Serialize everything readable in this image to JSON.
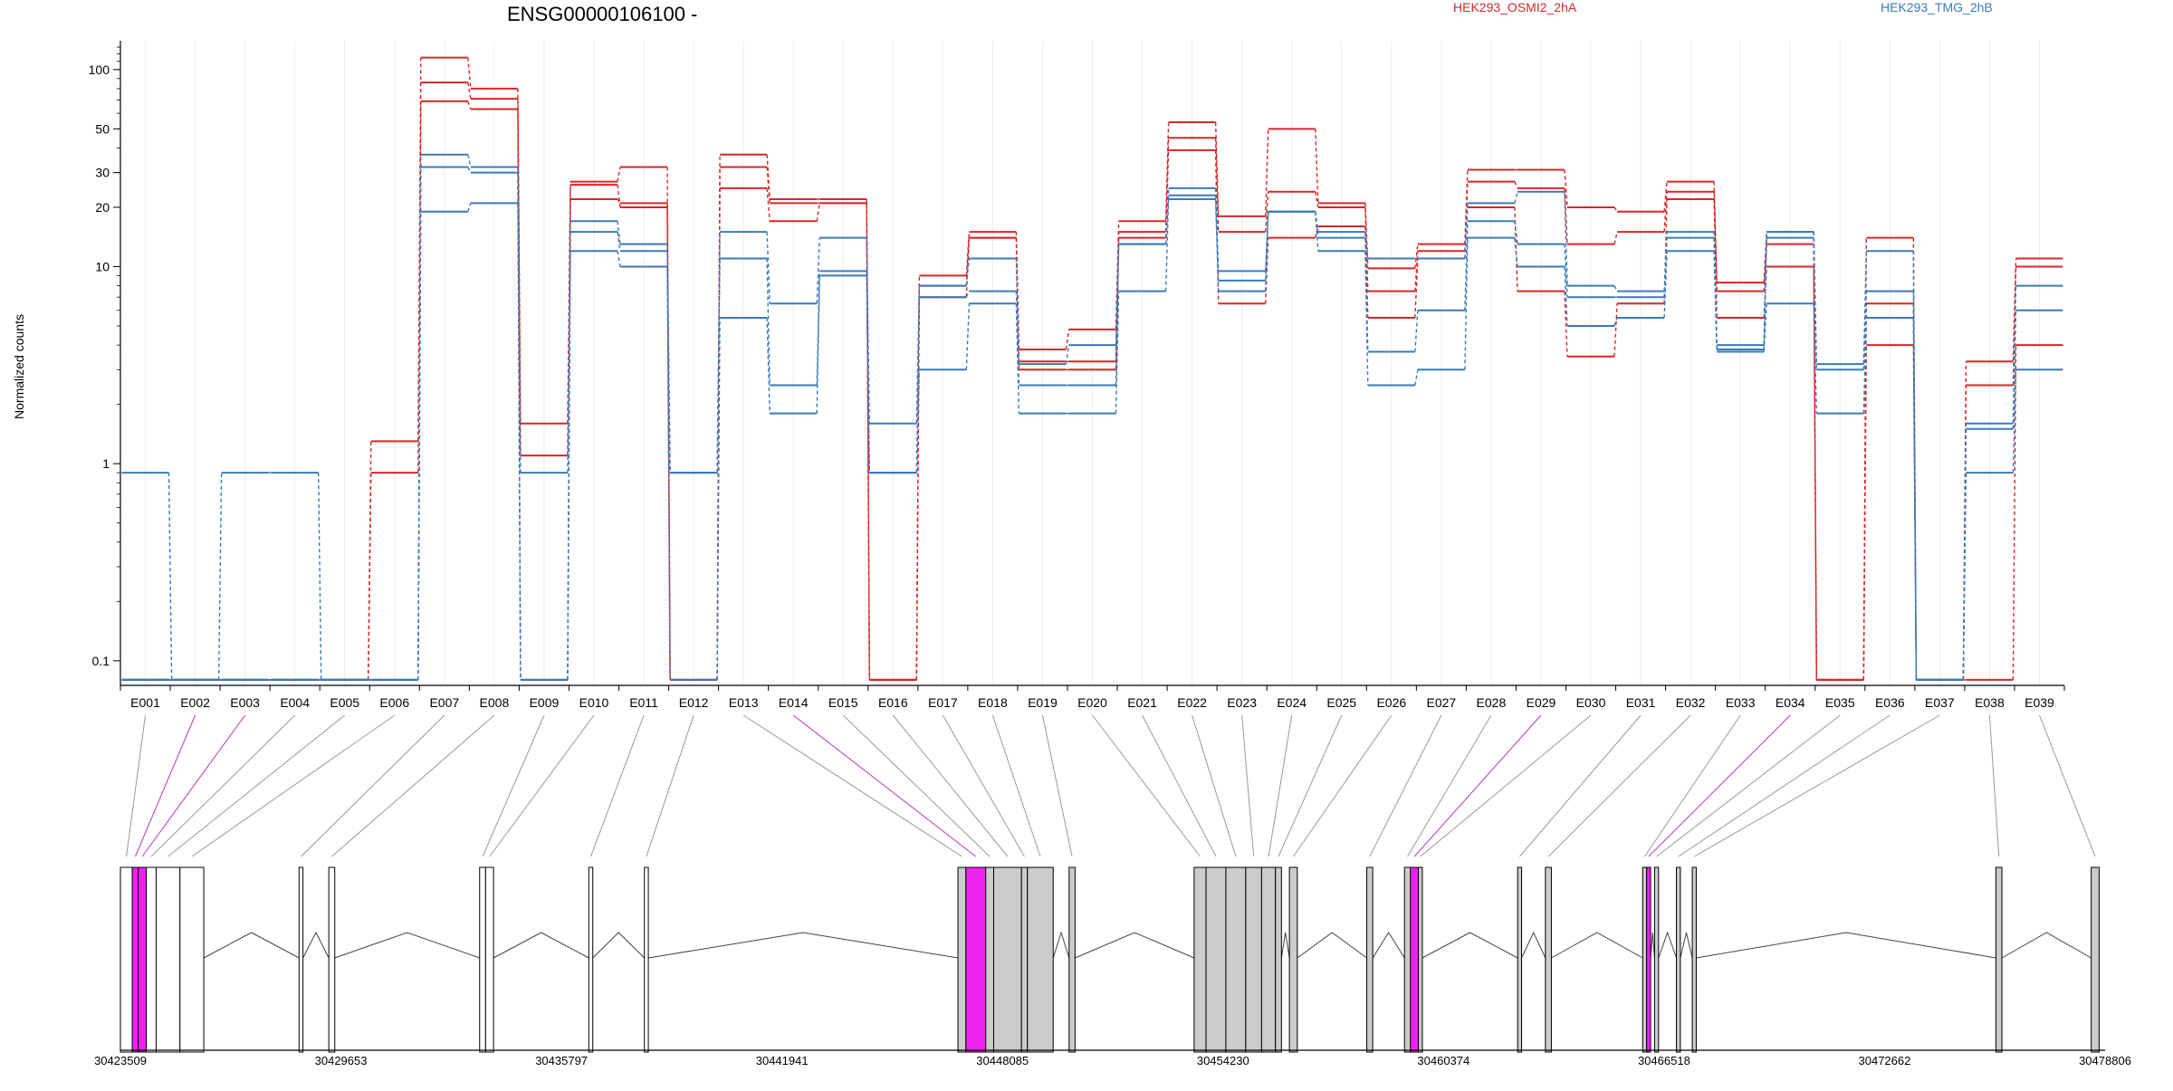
{
  "chart_data": {
    "type": "line",
    "title": "ENSG00000106100 -",
    "ylabel": "Normalized counts",
    "y_scale": "log",
    "y_ticks": [
      0.1,
      1,
      10,
      20,
      30,
      50,
      100
    ],
    "ylim": [
      0.075,
      140
    ],
    "grid": true,
    "categories": [
      "E001",
      "E002",
      "E003",
      "E004",
      "E005",
      "E006",
      "E007",
      "E008",
      "E009",
      "E010",
      "E011",
      "E012",
      "E013",
      "E014",
      "E015",
      "E016",
      "E017",
      "E018",
      "E019",
      "E020",
      "E021",
      "E022",
      "E023",
      "E024",
      "E025",
      "E026",
      "E027",
      "E028",
      "E029",
      "E030",
      "E031",
      "E032",
      "E033",
      "E034",
      "E035",
      "E036",
      "E037",
      "E038",
      "E039"
    ],
    "legend": [
      {
        "name": "HEK293_OSMI2_2hA",
        "color": "#d62728"
      },
      {
        "name": "HEK293_TMG_2hB",
        "color": "#3a7ab8"
      }
    ],
    "series": [
      {
        "group": "HEK293_OSMI2_2hA",
        "color": "#d62728",
        "values": [
          0.08,
          0.08,
          0.08,
          0.08,
          0.08,
          1.3,
          115,
          80,
          1.6,
          27,
          32,
          0.08,
          37,
          22,
          22,
          0.08,
          9,
          15,
          3.8,
          4.8,
          17,
          54,
          18,
          50,
          21,
          9.8,
          13,
          31,
          31,
          20,
          19,
          27,
          8.3,
          15,
          0.08,
          14,
          0.08,
          3.3,
          11
        ]
      },
      {
        "group": "HEK293_OSMI2_2hA",
        "color": "#d62728",
        "values": [
          0.08,
          0.08,
          0.08,
          0.08,
          0.08,
          0.9,
          86,
          71,
          1.1,
          22,
          21,
          0.08,
          32,
          21,
          21,
          0.08,
          8,
          14,
          3.3,
          3.3,
          15,
          45,
          15,
          24,
          20,
          7.5,
          12,
          27,
          25,
          13,
          15,
          24,
          7.5,
          13,
          0.08,
          6.5,
          0.08,
          2.5,
          10
        ]
      },
      {
        "group": "HEK293_OSMI2_2hA",
        "color": "#d62728",
        "values": [
          0.08,
          0.08,
          0.08,
          0.08,
          0.08,
          0.08,
          69,
          63,
          0.08,
          26,
          20,
          0.08,
          25,
          17,
          21,
          0.08,
          7,
          14,
          3,
          3,
          14,
          39,
          6.5,
          14,
          16,
          5.5,
          11,
          20,
          7.5,
          3.5,
          6.5,
          22,
          5.5,
          10,
          0.08,
          4,
          0.08,
          0.08,
          4
        ]
      },
      {
        "group": "HEK293_TMG_2hB",
        "color": "#3a7ab8",
        "values": [
          0.9,
          0.08,
          0.9,
          0.9,
          0.08,
          0.08,
          37,
          32,
          0.08,
          17,
          13,
          0.9,
          15,
          6.5,
          14,
          1.6,
          8,
          11,
          3.2,
          4,
          13,
          25,
          9.5,
          19,
          15,
          11,
          11,
          21,
          24,
          8,
          7.5,
          15,
          4,
          15,
          3.2,
          12,
          0.08,
          1.6,
          8
        ]
      },
      {
        "group": "HEK293_TMG_2hB",
        "color": "#3a7ab8",
        "values": [
          0.08,
          0.08,
          0.08,
          0.08,
          0.08,
          0.08,
          32,
          30,
          0.08,
          15,
          12,
          0.9,
          11,
          2.5,
          9.5,
          0.9,
          7,
          7.5,
          2.5,
          2.5,
          13,
          23,
          8.5,
          19,
          14,
          3.7,
          6,
          17,
          13,
          7,
          7,
          14,
          3.8,
          14,
          3,
          7.5,
          0.08,
          1.5,
          6
        ]
      },
      {
        "group": "HEK293_TMG_2hB",
        "color": "#3a7ab8",
        "values": [
          0.08,
          0.08,
          0.08,
          0.08,
          0.08,
          0.08,
          19,
          21,
          0.9,
          12,
          10,
          0.08,
          5.5,
          1.8,
          9,
          0.9,
          3,
          6.5,
          1.8,
          1.8,
          7.5,
          22,
          7.5,
          19,
          12,
          2.5,
          3,
          14,
          10,
          5,
          5.5,
          12,
          3.7,
          6.5,
          1.8,
          5.5,
          0.08,
          0.9,
          3
        ]
      }
    ],
    "gene_model": {
      "coord_ticks": [
        "30423509",
        "30429653",
        "30435797",
        "30441941",
        "30448085",
        "30454230",
        "30460374",
        "30466518",
        "30472662",
        "30478806"
      ],
      "highlighted_exons": [
        "E002",
        "E003",
        "E014",
        "E029",
        "E034"
      ]
    }
  }
}
